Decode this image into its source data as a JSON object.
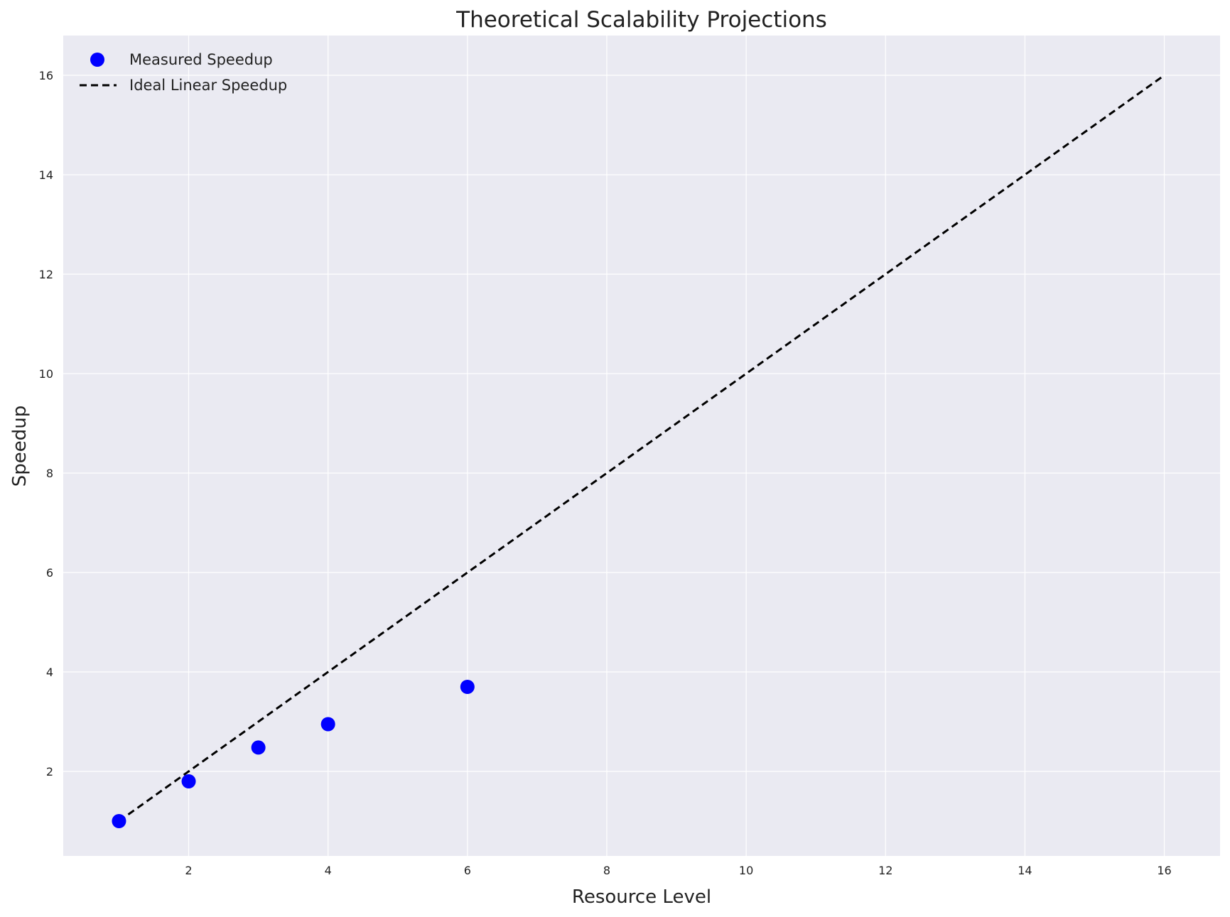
{
  "chart_data": {
    "type": "scatter",
    "title": "Theoretical Scalability Projections",
    "xlabel": "Resource Level",
    "ylabel": "Speedup",
    "xlim": [
      0.2,
      16.8
    ],
    "ylim": [
      0.3,
      16.8
    ],
    "xticks": [
      2,
      4,
      6,
      8,
      10,
      12,
      14,
      16
    ],
    "yticks": [
      2,
      4,
      6,
      8,
      10,
      12,
      14,
      16
    ],
    "grid": true,
    "legend_position": "top-left",
    "series": [
      {
        "name": "Measured Speedup",
        "kind": "scatter",
        "color": "#0000ff",
        "x": [
          1,
          2,
          3,
          4,
          6
        ],
        "y": [
          1.0,
          1.8,
          2.48,
          2.95,
          3.7
        ]
      },
      {
        "name": "Ideal Linear Speedup",
        "kind": "line",
        "style": "dashed",
        "color": "#000000",
        "x": [
          1,
          16
        ],
        "y": [
          1,
          16
        ]
      }
    ],
    "colors": {
      "plot_background": "#eaeaf2",
      "grid": "#ffffff"
    }
  }
}
